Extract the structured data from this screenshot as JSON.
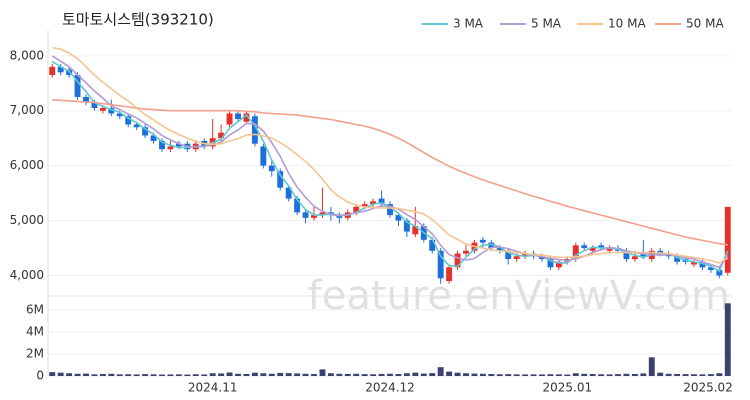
{
  "chart_data": [
    {
      "type": "candlestick",
      "title": "토마토시스템(393210)",
      "annotations": [
        "feature.enViewV.com"
      ],
      "up_color": "#e8302a",
      "down_color": "#1e6fd9",
      "open": [
        7650,
        7800,
        7750,
        7650,
        7250,
        7150,
        7000,
        7050,
        6950,
        6900,
        6750,
        6700,
        6550,
        6450,
        6300,
        6400,
        6400,
        6300,
        6450,
        6350,
        6500,
        6750,
        6950,
        6800,
        6900,
        6350,
        6000,
        5900,
        5600,
        5400,
        5150,
        5050,
        5100,
        5150,
        5100,
        5050,
        5150,
        5250,
        5300,
        5400,
        5300,
        5100,
        5000,
        4750,
        4900,
        4650,
        4450,
        3900,
        4150,
        4400,
        4450,
        4650,
        4600,
        4500,
        4450,
        4300,
        4350,
        4400,
        4350,
        4300,
        4150,
        4250,
        4300,
        4550,
        4450,
        4550,
        4450,
        4500,
        4450,
        4300,
        4400,
        4300,
        4450,
        4400,
        4350,
        4300,
        4200,
        4250,
        4150,
        4100,
        4050
      ],
      "high": [
        7850,
        7850,
        7800,
        7700,
        7300,
        7200,
        7100,
        7200,
        7000,
        6950,
        6800,
        6750,
        6600,
        6500,
        6450,
        6450,
        6450,
        6450,
        6500,
        6850,
        6750,
        7000,
        7000,
        7000,
        6950,
        6400,
        6100,
        5950,
        5650,
        5450,
        5200,
        5250,
        5600,
        5250,
        5150,
        5200,
        5300,
        5350,
        5400,
        5550,
        5350,
        5150,
        5050,
        5250,
        4950,
        4700,
        4500,
        4200,
        4450,
        4550,
        4650,
        4700,
        4650,
        4550,
        4500,
        4400,
        4450,
        4450,
        4400,
        4350,
        4300,
        4350,
        4600,
        4600,
        4550,
        4600,
        4550,
        4550,
        4500,
        4450,
        4650,
        4500,
        4500,
        4450,
        4400,
        4350,
        4300,
        4300,
        4200,
        4150,
        5250
      ],
      "low": [
        7600,
        7650,
        7600,
        7200,
        7100,
        7000,
        6950,
        6900,
        6850,
        6700,
        6650,
        6500,
        6400,
        6250,
        6250,
        6300,
        6250,
        6250,
        6300,
        6300,
        6450,
        6700,
        6800,
        6750,
        6350,
        5950,
        5800,
        5550,
        5350,
        5100,
        4950,
        5000,
        5050,
        5000,
        4950,
        5000,
        5100,
        5200,
        5250,
        5250,
        5050,
        4900,
        4700,
        4700,
        4600,
        4400,
        3850,
        3850,
        4100,
        4350,
        4400,
        4500,
        4450,
        4400,
        4200,
        4250,
        4300,
        4300,
        4250,
        4100,
        4100,
        4200,
        4250,
        4450,
        4400,
        4450,
        4400,
        4400,
        4250,
        4250,
        4300,
        4250,
        4350,
        4300,
        4200,
        4200,
        4150,
        4100,
        4050,
        3950,
        4000
      ],
      "close": [
        7800,
        7700,
        7650,
        7250,
        7150,
        7050,
        7050,
        6950,
        6900,
        6750,
        6700,
        6550,
        6450,
        6300,
        6350,
        6350,
        6300,
        6400,
        6350,
        6500,
        6600,
        6950,
        6850,
        6950,
        6400,
        6000,
        5900,
        5600,
        5400,
        5150,
        5050,
        5100,
        5150,
        5100,
        5050,
        5150,
        5250,
        5300,
        5350,
        5300,
        5100,
        5000,
        4800,
        4900,
        4650,
        4450,
        3950,
        4150,
        4400,
        4450,
        4600,
        4600,
        4500,
        4450,
        4300,
        4350,
        4400,
        4350,
        4300,
        4150,
        4250,
        4300,
        4550,
        4500,
        4500,
        4500,
        4500,
        4450,
        4300,
        4350,
        4350,
        4450,
        4400,
        4350,
        4250,
        4250,
        4250,
        4150,
        4100,
        4000,
        5250
      ],
      "series": [
        {
          "name": "3 MA",
          "color": "#5ec8d3",
          "values": [
            7900,
            7800,
            7720,
            7530,
            7350,
            7150,
            7080,
            7020,
            6970,
            6870,
            6780,
            6670,
            6570,
            6430,
            6370,
            6330,
            6330,
            6350,
            6350,
            6420,
            6480,
            6680,
            6800,
            6920,
            6730,
            6450,
            6100,
            5830,
            5630,
            5380,
            5200,
            5100,
            5100,
            5120,
            5100,
            5100,
            5150,
            5230,
            5300,
            5320,
            5250,
            5130,
            4970,
            4900,
            4780,
            4670,
            4350,
            4180,
            4170,
            4330,
            4480,
            4550,
            4570,
            4520,
            4420,
            4370,
            4350,
            4370,
            4350,
            4270,
            4230,
            4230,
            4370,
            4450,
            4520,
            4500,
            4500,
            4480,
            4420,
            4370,
            4330,
            4380,
            4400,
            4400,
            4330,
            4280,
            4250,
            4220,
            4170,
            4080,
            4450
          ]
        },
        {
          "name": "5 MA",
          "color": "#b49ad6",
          "values": [
            8000,
            7900,
            7800,
            7650,
            7510,
            7360,
            7230,
            7090,
            7020,
            6940,
            6870,
            6770,
            6670,
            6550,
            6470,
            6400,
            6350,
            6340,
            6350,
            6380,
            6430,
            6560,
            6650,
            6770,
            6760,
            6630,
            6420,
            6170,
            5860,
            5610,
            5420,
            5260,
            5170,
            5110,
            5090,
            5110,
            5140,
            5170,
            5220,
            5270,
            5260,
            5210,
            5110,
            5020,
            4890,
            4760,
            4550,
            4380,
            4320,
            4280,
            4310,
            4420,
            4510,
            4520,
            4490,
            4440,
            4400,
            4370,
            4340,
            4310,
            4290,
            4270,
            4310,
            4350,
            4420,
            4470,
            4510,
            4490,
            4450,
            4420,
            4390,
            4380,
            4370,
            4380,
            4360,
            4320,
            4300,
            4250,
            4200,
            4150,
            4370
          ]
        },
        {
          "name": "10 MA",
          "color": "#f5c48e",
          "values": [
            8150,
            8120,
            8050,
            7950,
            7800,
            7650,
            7520,
            7400,
            7280,
            7180,
            7050,
            6930,
            6830,
            6730,
            6640,
            6570,
            6500,
            6450,
            6400,
            6390,
            6400,
            6450,
            6490,
            6560,
            6570,
            6540,
            6500,
            6420,
            6320,
            6200,
            6080,
            5930,
            5760,
            5560,
            5430,
            5340,
            5280,
            5250,
            5240,
            5230,
            5230,
            5220,
            5190,
            5160,
            5120,
            5020,
            4880,
            4740,
            4660,
            4570,
            4530,
            4500,
            4470,
            4450,
            4440,
            4420,
            4400,
            4380,
            4370,
            4350,
            4330,
            4330,
            4340,
            4350,
            4380,
            4400,
            4420,
            4420,
            4420,
            4420,
            4420,
            4420,
            4410,
            4400,
            4370,
            4350,
            4330,
            4300,
            4270,
            4230,
            4320
          ]
        },
        {
          "name": "50 MA",
          "color": "#f3a08c",
          "values": [
            7200,
            7190,
            7180,
            7170,
            7160,
            7150,
            7130,
            7110,
            7090,
            7070,
            7050,
            7030,
            7020,
            7010,
            7000,
            7000,
            7000,
            7000,
            7000,
            7000,
            7000,
            7000,
            7000,
            6990,
            6980,
            6960,
            6950,
            6940,
            6930,
            6920,
            6900,
            6880,
            6860,
            6840,
            6810,
            6780,
            6750,
            6720,
            6680,
            6630,
            6570,
            6500,
            6420,
            6330,
            6240,
            6150,
            6070,
            5990,
            5920,
            5860,
            5800,
            5740,
            5690,
            5640,
            5590,
            5540,
            5490,
            5440,
            5400,
            5350,
            5310,
            5260,
            5220,
            5180,
            5140,
            5100,
            5060,
            5020,
            4980,
            4940,
            4900,
            4860,
            4820,
            4780,
            4740,
            4700,
            4670,
            4640,
            4610,
            4580,
            4560
          ]
        }
      ],
      "ylim": [
        3700,
        8470
      ],
      "yticks": [
        {
          "value": 4000,
          "label": "4,000"
        },
        {
          "value": 5000,
          "label": "5,000"
        },
        {
          "value": 6000,
          "label": "6,000"
        },
        {
          "value": 7000,
          "label": "7,000"
        },
        {
          "value": 8000,
          "label": "8,000"
        }
      ],
      "grid": true
    },
    {
      "type": "bar",
      "color": "#3d4170",
      "categories": [
        null,
        null,
        null,
        null,
        null,
        null,
        null,
        null,
        null,
        null,
        null,
        null,
        null,
        null,
        null,
        null,
        null,
        null,
        null,
        "2024.11",
        null,
        null,
        null,
        null,
        null,
        null,
        null,
        null,
        null,
        null,
        null,
        null,
        null,
        null,
        null,
        null,
        null,
        null,
        null,
        null,
        "2024.12",
        null,
        null,
        null,
        null,
        null,
        null,
        null,
        null,
        null,
        null,
        null,
        null,
        null,
        null,
        null,
        null,
        null,
        null,
        null,
        null,
        "2025.01",
        null,
        null,
        null,
        null,
        null,
        null,
        null,
        null,
        null,
        null,
        null,
        null,
        null,
        null,
        null,
        null,
        null,
        "2025.02",
        null
      ],
      "values": [
        350000,
        300000,
        250000,
        200000,
        220000,
        150000,
        180000,
        200000,
        150000,
        160000,
        140000,
        170000,
        150000,
        130000,
        140000,
        150000,
        130000,
        160000,
        140000,
        250000,
        230000,
        320000,
        200000,
        180000,
        300000,
        250000,
        200000,
        280000,
        260000,
        230000,
        200000,
        180000,
        600000,
        250000,
        200000,
        180000,
        200000,
        170000,
        160000,
        190000,
        200000,
        180000,
        250000,
        300000,
        220000,
        260000,
        800000,
        400000,
        300000,
        250000,
        220000,
        200000,
        180000,
        160000,
        170000,
        150000,
        140000,
        150000,
        140000,
        160000,
        150000,
        130000,
        250000,
        200000,
        180000,
        160000,
        150000,
        170000,
        200000,
        180000,
        230000,
        1700000,
        300000,
        200000,
        180000,
        170000,
        160000,
        150000,
        170000,
        250000,
        6600000
      ],
      "ylim": [
        0,
        6900000
      ],
      "yticks": [
        0,
        {
          "value": 2000000,
          "label": "2M"
        },
        {
          "value": 4000000,
          "label": "4M"
        },
        {
          "value": 6000000,
          "label": "6M"
        }
      ],
      "grid": true
    }
  ]
}
